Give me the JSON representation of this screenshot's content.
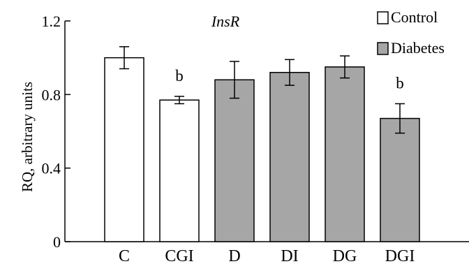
{
  "chart_data": {
    "type": "bar",
    "title": "InsR",
    "ylabel": "RQ, arbitrary units",
    "xlabel": "",
    "ylim": [
      0,
      1.2
    ],
    "yticks": [
      "0",
      "0.4",
      "0.8",
      "1.2"
    ],
    "ytick_values": [
      0,
      0.4,
      0.8,
      1.2
    ],
    "categories": [
      "C",
      "CGI",
      "D",
      "DI",
      "DG",
      "DGI"
    ],
    "values": [
      1.0,
      0.77,
      0.88,
      0.92,
      0.95,
      0.67
    ],
    "errors": [
      0.06,
      0.02,
      0.1,
      0.07,
      0.06,
      0.08
    ],
    "groups": [
      "Control",
      "Control",
      "Diabetes",
      "Diabetes",
      "Diabetes",
      "Diabetes"
    ],
    "annotations": [
      "",
      "b",
      "",
      "",
      "",
      "b"
    ],
    "legend": [
      {
        "label": "Control",
        "color": "#ffffff"
      },
      {
        "label": "Diabetes",
        "color": "#a6a6a6"
      }
    ],
    "legend_position": "top-right",
    "grid": false
  }
}
